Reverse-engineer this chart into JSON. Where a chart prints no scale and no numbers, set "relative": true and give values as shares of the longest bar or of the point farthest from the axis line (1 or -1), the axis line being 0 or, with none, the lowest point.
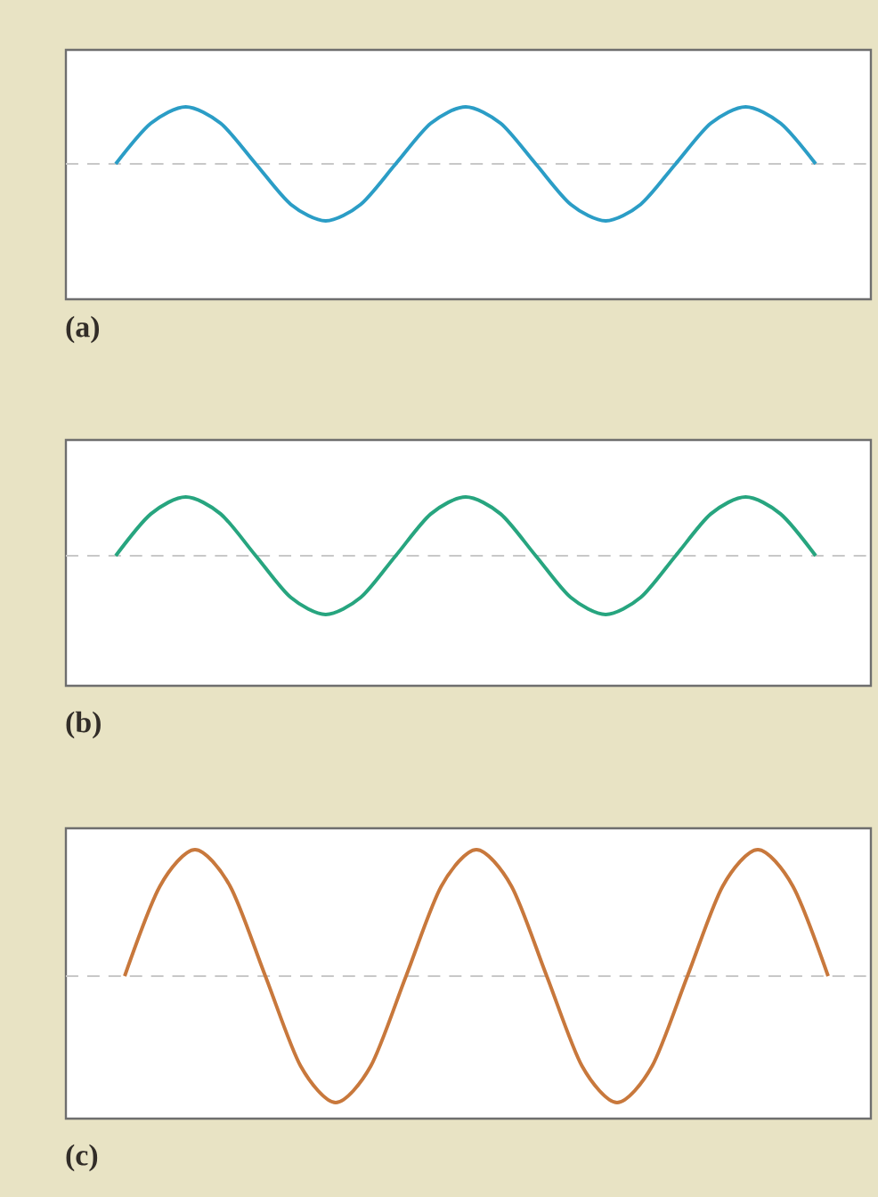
{
  "chart_data": [
    {
      "type": "line",
      "relative": true,
      "categories": [
        null,
        null,
        null,
        null,
        null,
        null,
        null,
        null,
        null,
        null,
        null,
        null,
        null,
        null,
        null,
        null,
        null,
        null,
        null,
        null,
        null
      ],
      "series": [
        {
          "color": "#2b9dc6",
          "values": [
            0,
            0.71,
            1,
            0.71,
            0,
            -0.71,
            -1,
            -0.71,
            0,
            0.71,
            1,
            0.71,
            0,
            -0.71,
            -1,
            -0.71,
            0,
            0.71,
            1,
            0.71,
            0
          ]
        }
      ],
      "ref_lines": [
        {
          "axis": "y",
          "value": 0,
          "color": "#c8c8c8",
          "line_style": "dashed"
        }
      ],
      "marker": "none",
      "line_style": "solid",
      "annotations": [
        "(a)"
      ]
    },
    {
      "type": "line",
      "relative": true,
      "categories": [
        null,
        null,
        null,
        null,
        null,
        null,
        null,
        null,
        null,
        null,
        null,
        null,
        null,
        null,
        null,
        null,
        null,
        null,
        null,
        null,
        null
      ],
      "series": [
        {
          "color": "#27a57f",
          "values": [
            0,
            0.71,
            1,
            0.71,
            0,
            -0.71,
            -1,
            -0.71,
            0,
            0.71,
            1,
            0.71,
            0,
            -0.71,
            -1,
            -0.71,
            0,
            0.71,
            1,
            0.71,
            0
          ]
        }
      ],
      "ref_lines": [
        {
          "axis": "y",
          "value": 0,
          "color": "#c8c8c8",
          "line_style": "dashed"
        }
      ],
      "marker": "none",
      "line_style": "solid",
      "annotations": [
        "(b)"
      ]
    },
    {
      "type": "line",
      "relative": true,
      "categories": [
        null,
        null,
        null,
        null,
        null,
        null,
        null,
        null,
        null,
        null,
        null,
        null,
        null,
        null,
        null,
        null,
        null,
        null,
        null,
        null,
        null
      ],
      "series": [
        {
          "color": "#c8783c",
          "values": [
            0,
            0.71,
            1,
            0.71,
            0,
            -0.71,
            -1,
            -0.71,
            0,
            0.71,
            1,
            0.71,
            0,
            -0.71,
            -1,
            -0.71,
            0,
            0.71,
            1,
            0.71,
            0
          ]
        }
      ],
      "ref_lines": [
        {
          "axis": "y",
          "value": 0,
          "color": "#c8c8c8",
          "line_style": "dashed"
        }
      ],
      "marker": "none",
      "line_style": "solid",
      "annotations": [
        "(c)"
      ]
    }
  ]
}
